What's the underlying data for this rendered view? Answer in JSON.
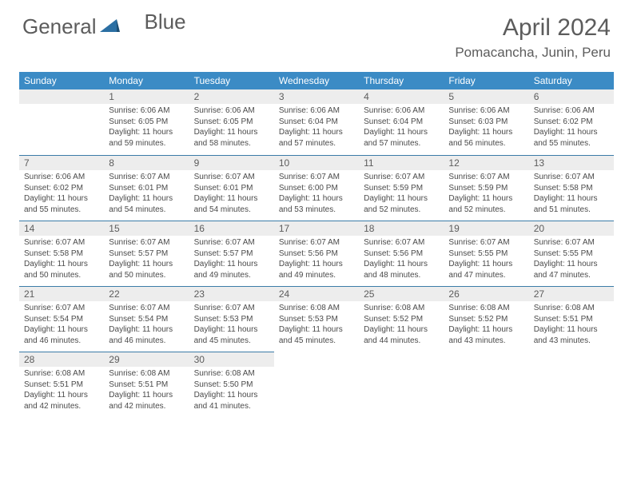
{
  "colors": {
    "header_bg": "#3b8bc5",
    "header_text": "#ffffff",
    "daynum_bg": "#ededed",
    "daynum_text": "#5c5c5c",
    "body_text": "#4a4a4a",
    "title_text": "#5c5c5c",
    "row_border": "#3b7ca8",
    "logo_accent": "#2b6fa3"
  },
  "logo": {
    "part1": "General",
    "part2": "Blue"
  },
  "title": "April 2024",
  "location": "Pomacancha, Junin, Peru",
  "weekdays": [
    "Sunday",
    "Monday",
    "Tuesday",
    "Wednesday",
    "Thursday",
    "Friday",
    "Saturday"
  ],
  "weeks": [
    [
      {
        "empty": true
      },
      {
        "n": "1",
        "sr": "Sunrise: 6:06 AM",
        "ss": "Sunset: 6:05 PM",
        "dl": "Daylight: 11 hours and 59 minutes."
      },
      {
        "n": "2",
        "sr": "Sunrise: 6:06 AM",
        "ss": "Sunset: 6:05 PM",
        "dl": "Daylight: 11 hours and 58 minutes."
      },
      {
        "n": "3",
        "sr": "Sunrise: 6:06 AM",
        "ss": "Sunset: 6:04 PM",
        "dl": "Daylight: 11 hours and 57 minutes."
      },
      {
        "n": "4",
        "sr": "Sunrise: 6:06 AM",
        "ss": "Sunset: 6:04 PM",
        "dl": "Daylight: 11 hours and 57 minutes."
      },
      {
        "n": "5",
        "sr": "Sunrise: 6:06 AM",
        "ss": "Sunset: 6:03 PM",
        "dl": "Daylight: 11 hours and 56 minutes."
      },
      {
        "n": "6",
        "sr": "Sunrise: 6:06 AM",
        "ss": "Sunset: 6:02 PM",
        "dl": "Daylight: 11 hours and 55 minutes."
      }
    ],
    [
      {
        "n": "7",
        "sr": "Sunrise: 6:06 AM",
        "ss": "Sunset: 6:02 PM",
        "dl": "Daylight: 11 hours and 55 minutes."
      },
      {
        "n": "8",
        "sr": "Sunrise: 6:07 AM",
        "ss": "Sunset: 6:01 PM",
        "dl": "Daylight: 11 hours and 54 minutes."
      },
      {
        "n": "9",
        "sr": "Sunrise: 6:07 AM",
        "ss": "Sunset: 6:01 PM",
        "dl": "Daylight: 11 hours and 54 minutes."
      },
      {
        "n": "10",
        "sr": "Sunrise: 6:07 AM",
        "ss": "Sunset: 6:00 PM",
        "dl": "Daylight: 11 hours and 53 minutes."
      },
      {
        "n": "11",
        "sr": "Sunrise: 6:07 AM",
        "ss": "Sunset: 5:59 PM",
        "dl": "Daylight: 11 hours and 52 minutes."
      },
      {
        "n": "12",
        "sr": "Sunrise: 6:07 AM",
        "ss": "Sunset: 5:59 PM",
        "dl": "Daylight: 11 hours and 52 minutes."
      },
      {
        "n": "13",
        "sr": "Sunrise: 6:07 AM",
        "ss": "Sunset: 5:58 PM",
        "dl": "Daylight: 11 hours and 51 minutes."
      }
    ],
    [
      {
        "n": "14",
        "sr": "Sunrise: 6:07 AM",
        "ss": "Sunset: 5:58 PM",
        "dl": "Daylight: 11 hours and 50 minutes."
      },
      {
        "n": "15",
        "sr": "Sunrise: 6:07 AM",
        "ss": "Sunset: 5:57 PM",
        "dl": "Daylight: 11 hours and 50 minutes."
      },
      {
        "n": "16",
        "sr": "Sunrise: 6:07 AM",
        "ss": "Sunset: 5:57 PM",
        "dl": "Daylight: 11 hours and 49 minutes."
      },
      {
        "n": "17",
        "sr": "Sunrise: 6:07 AM",
        "ss": "Sunset: 5:56 PM",
        "dl": "Daylight: 11 hours and 49 minutes."
      },
      {
        "n": "18",
        "sr": "Sunrise: 6:07 AM",
        "ss": "Sunset: 5:56 PM",
        "dl": "Daylight: 11 hours and 48 minutes."
      },
      {
        "n": "19",
        "sr": "Sunrise: 6:07 AM",
        "ss": "Sunset: 5:55 PM",
        "dl": "Daylight: 11 hours and 47 minutes."
      },
      {
        "n": "20",
        "sr": "Sunrise: 6:07 AM",
        "ss": "Sunset: 5:55 PM",
        "dl": "Daylight: 11 hours and 47 minutes."
      }
    ],
    [
      {
        "n": "21",
        "sr": "Sunrise: 6:07 AM",
        "ss": "Sunset: 5:54 PM",
        "dl": "Daylight: 11 hours and 46 minutes."
      },
      {
        "n": "22",
        "sr": "Sunrise: 6:07 AM",
        "ss": "Sunset: 5:54 PM",
        "dl": "Daylight: 11 hours and 46 minutes."
      },
      {
        "n": "23",
        "sr": "Sunrise: 6:07 AM",
        "ss": "Sunset: 5:53 PM",
        "dl": "Daylight: 11 hours and 45 minutes."
      },
      {
        "n": "24",
        "sr": "Sunrise: 6:08 AM",
        "ss": "Sunset: 5:53 PM",
        "dl": "Daylight: 11 hours and 45 minutes."
      },
      {
        "n": "25",
        "sr": "Sunrise: 6:08 AM",
        "ss": "Sunset: 5:52 PM",
        "dl": "Daylight: 11 hours and 44 minutes."
      },
      {
        "n": "26",
        "sr": "Sunrise: 6:08 AM",
        "ss": "Sunset: 5:52 PM",
        "dl": "Daylight: 11 hours and 43 minutes."
      },
      {
        "n": "27",
        "sr": "Sunrise: 6:08 AM",
        "ss": "Sunset: 5:51 PM",
        "dl": "Daylight: 11 hours and 43 minutes."
      }
    ],
    [
      {
        "n": "28",
        "sr": "Sunrise: 6:08 AM",
        "ss": "Sunset: 5:51 PM",
        "dl": "Daylight: 11 hours and 42 minutes."
      },
      {
        "n": "29",
        "sr": "Sunrise: 6:08 AM",
        "ss": "Sunset: 5:51 PM",
        "dl": "Daylight: 11 hours and 42 minutes."
      },
      {
        "n": "30",
        "sr": "Sunrise: 6:08 AM",
        "ss": "Sunset: 5:50 PM",
        "dl": "Daylight: 11 hours and 41 minutes."
      },
      {
        "empty": true
      },
      {
        "empty": true
      },
      {
        "empty": true
      },
      {
        "empty": true
      }
    ]
  ]
}
